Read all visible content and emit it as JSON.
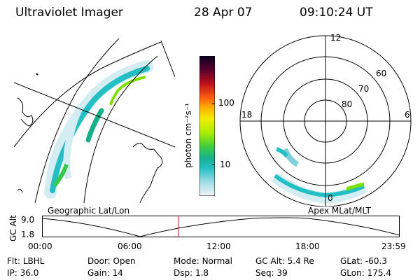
{
  "header": {
    "instrument": "Ultraviolet Imager",
    "date": "28 Apr 07",
    "time": "09:10:24 UT"
  },
  "geo_panel": {
    "label": "Geographic Lat/Lon"
  },
  "colorbar": {
    "label": "photon cm⁻²s⁻¹",
    "tick_labels": [
      "100",
      "10"
    ],
    "colors": [
      "#0a0020",
      "#30003a",
      "#6a0025",
      "#a8001a",
      "#d8101a",
      "#ff4a10",
      "#ff8a00",
      "#ffc000",
      "#f2ee00",
      "#c6f000",
      "#7fe000",
      "#36c84c",
      "#18b088",
      "#22c0c4",
      "#8ad6e0",
      "#dceef2"
    ]
  },
  "polar_panel": {
    "label": "Apex MLat/MLT",
    "mlt_labels": {
      "top": "12",
      "left": "18",
      "right": "6",
      "bottom": "0"
    },
    "mlat_labels": [
      "60",
      "70",
      "80"
    ]
  },
  "timeline": {
    "y_axis_label": "GC Alt",
    "y_ticks": [
      "9.0",
      "1.8"
    ],
    "x_ticks": [
      "00:00",
      "06:00",
      "12:00",
      "18:00",
      "23:59"
    ],
    "current_time_fraction": 0.382
  },
  "footer": {
    "row1": [
      {
        "label": "Flt:",
        "value": "LBHL"
      },
      {
        "label": "Door:",
        "value": "Open"
      },
      {
        "label": "Mode:",
        "value": "Normal"
      },
      {
        "label": "GC Alt:",
        "value": "5.4 Re"
      },
      {
        "label": "GLat:",
        "value": "-60.3"
      }
    ],
    "row2": [
      {
        "label": "IP:",
        "value": "36.0"
      },
      {
        "label": "Gain:",
        "value": "14"
      },
      {
        "label": "Dsp:",
        "value": "1.8"
      },
      {
        "label": "Seq:",
        "value": "39"
      },
      {
        "label": "GLon:",
        "value": "175.4"
      }
    ]
  }
}
